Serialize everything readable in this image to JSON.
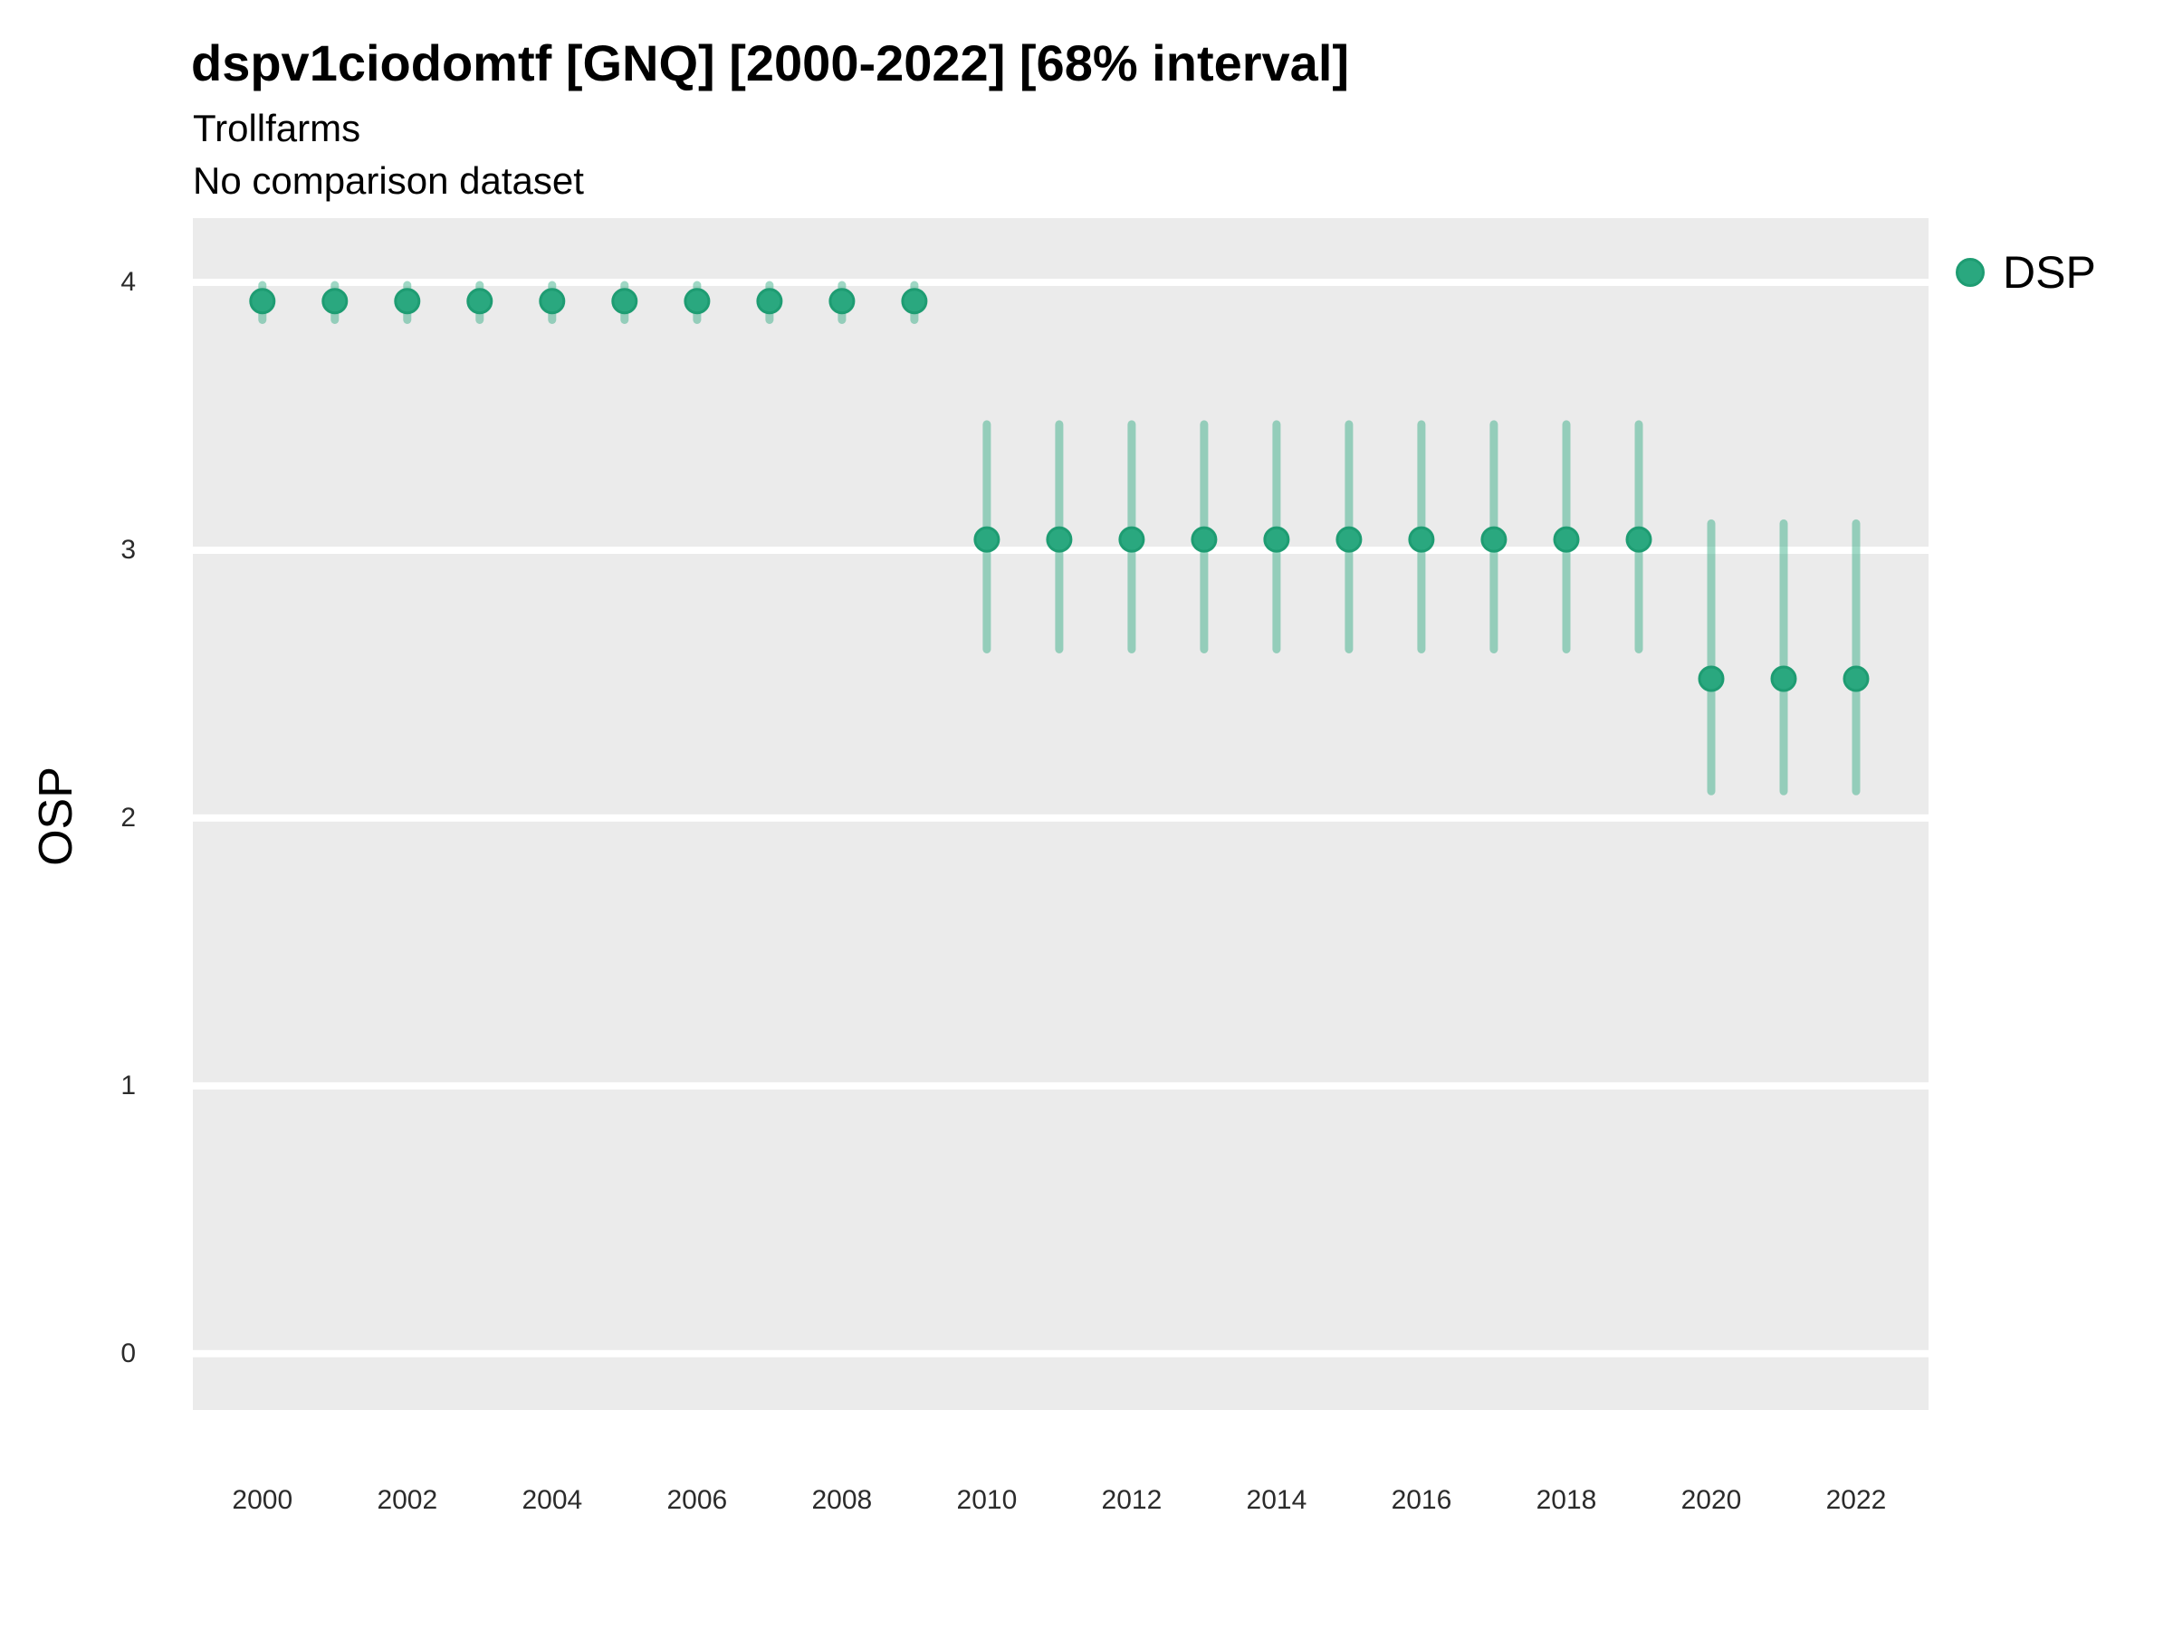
{
  "title": "dspv1ciodomtf [GNQ] [2000-2022] [68% interval]",
  "subtitle": "Trollfarms",
  "comparison_note": "No comparison dataset",
  "legend": {
    "position": "right-top",
    "items": [
      {
        "label": "DSP",
        "marker": "circle",
        "color": "#2aa87f"
      }
    ]
  },
  "axes": {
    "y_label": "OSP",
    "x_label": "",
    "y_ticks": [
      0,
      1,
      2,
      3,
      4
    ],
    "x_ticks": [
      2000,
      2002,
      2004,
      2006,
      2008,
      2010,
      2012,
      2014,
      2016,
      2018,
      2020,
      2022
    ]
  },
  "colors": {
    "point_fill": "#2aa87f",
    "point_stroke": "#1e9c72",
    "interval_bar": "rgba(42, 168, 127, 0.45)",
    "panel_background": "#ebebeb",
    "gridline": "#ffffff",
    "tick_text": "#2b2b2b",
    "title_text": "#000000"
  },
  "chart_data": {
    "type": "scatter",
    "title": "dspv1ciodomtf [GNQ] [2000-2022] [68% interval]",
    "subtitle": "Trollfarms",
    "note": "No comparison dataset",
    "xlabel": "",
    "ylabel": "OSP",
    "interval": "68%",
    "xlim": [
      1999.04,
      2023.0
    ],
    "ylim": [
      -0.21,
      4.24
    ],
    "grid": "horizontal-major-only",
    "legend_position": "right-top",
    "series": [
      {
        "name": "DSP",
        "x": [
          2000,
          2001,
          2002,
          2003,
          2004,
          2005,
          2006,
          2007,
          2008,
          2009,
          2010,
          2011,
          2012,
          2013,
          2014,
          2015,
          2016,
          2017,
          2018,
          2019,
          2020,
          2021,
          2022
        ],
        "y": [
          3.93,
          3.93,
          3.93,
          3.93,
          3.93,
          3.93,
          3.93,
          3.93,
          3.93,
          3.93,
          3.04,
          3.04,
          3.04,
          3.04,
          3.04,
          3.04,
          3.04,
          3.04,
          3.04,
          3.04,
          2.52,
          2.52,
          2.52
        ],
        "y_lo": [
          3.86,
          3.86,
          3.86,
          3.86,
          3.86,
          3.86,
          3.86,
          3.86,
          3.86,
          3.86,
          2.63,
          2.63,
          2.63,
          2.63,
          2.63,
          2.63,
          2.63,
          2.63,
          2.63,
          2.63,
          2.1,
          2.1,
          2.1
        ],
        "y_hi": [
          3.99,
          3.99,
          3.99,
          3.99,
          3.99,
          3.99,
          3.99,
          3.99,
          3.99,
          3.99,
          3.47,
          3.47,
          3.47,
          3.47,
          3.47,
          3.47,
          3.47,
          3.47,
          3.47,
          3.47,
          3.1,
          3.1,
          3.1
        ]
      }
    ]
  }
}
